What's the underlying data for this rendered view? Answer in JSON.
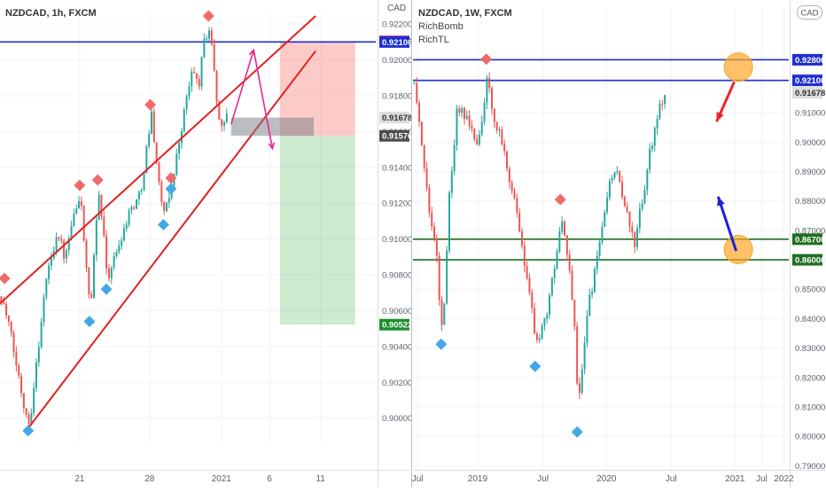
{
  "charts": [
    {
      "symbol_line": "NZDCAD, 1h, FXCM",
      "indicators": [],
      "currency_label": "CAD",
      "chart_data": {
        "type": "candlestick",
        "ylim": [
          0.8986,
          0.92265
        ],
        "y_ticks": [
          "0.90000",
          "0.90200",
          "0.90400",
          "0.90600",
          "0.90800",
          "0.91000",
          "0.91200",
          "0.91400",
          "0.91600",
          "0.91800",
          "0.92000",
          "0.92200"
        ],
        "x_ticks": [
          {
            "label": "21",
            "pos": 0.212
          },
          {
            "label": "28",
            "pos": 0.398
          },
          {
            "label": "2021",
            "pos": 0.589
          },
          {
            "label": "6",
            "pos": 0.717
          },
          {
            "label": "11",
            "pos": 0.853
          }
        ],
        "price_labels": [
          {
            "value": 0.92103,
            "text": "0.92103",
            "color": "#ef2323"
          },
          {
            "value": 0.921,
            "text": "0.92100",
            "color": "#1e2ed1"
          },
          {
            "value": 0.91678,
            "text": "0.91678",
            "color": "#dcdcdc"
          },
          {
            "value": 0.91576,
            "text": "0.91576",
            "color": "#4d4d4d"
          },
          {
            "value": 0.90522,
            "text": "0.90522",
            "color": "#1c8f2c"
          }
        ],
        "horizontal_lines": [
          {
            "value": 0.921,
            "color": "#1e2ed1"
          }
        ],
        "channel": {
          "upper": {
            "from": {
              "t": 0.0,
              "v": 0.9064
            },
            "to": {
              "t": 0.84,
              "v": 0.92245
            }
          },
          "lower": {
            "from": {
              "t": 0.07,
              "v": 0.8993
            },
            "to": {
              "t": 0.84,
              "v": 0.9205
            }
          },
          "color": "#e02020"
        },
        "position": {
          "t_from": 0.745,
          "t_to": 0.945,
          "entry": 0.91576,
          "stop": 0.92103,
          "target": 0.90522
        },
        "gray_box": {
          "t_from": 0.615,
          "t_to": 0.835,
          "v_top": 0.91678,
          "v_bottom": 0.91576
        },
        "projection": {
          "points": [
            {
              "t": 0.615,
              "v": 0.9164
            },
            {
              "t": 0.675,
              "v": 0.92055
            },
            {
              "t": 0.725,
              "v": 0.91505
            }
          ],
          "color": "#e6288f"
        },
        "markers_high": [
          {
            "t": 0.012,
            "v": 0.9078
          },
          {
            "t": 0.212,
            "v": 0.913
          },
          {
            "t": 0.26,
            "v": 0.9133
          },
          {
            "t": 0.4,
            "v": 0.9175
          },
          {
            "t": 0.455,
            "v": 0.9134
          },
          {
            "t": 0.555,
            "v": 0.92245
          }
        ],
        "markers_low": [
          {
            "t": 0.075,
            "v": 0.8993
          },
          {
            "t": 0.238,
            "v": 0.9054
          },
          {
            "t": 0.283,
            "v": 0.9072
          },
          {
            "t": 0.435,
            "v": 0.9108
          },
          {
            "t": 0.455,
            "v": 0.9128
          }
        ],
        "path": [
          {
            "t": 0.0,
            "v": 0.9068
          },
          {
            "t": 0.02,
            "v": 0.9052
          },
          {
            "t": 0.04,
            "v": 0.903
          },
          {
            "t": 0.06,
            "v": 0.9008
          },
          {
            "t": 0.075,
            "v": 0.8997
          },
          {
            "t": 0.1,
            "v": 0.9042
          },
          {
            "t": 0.12,
            "v": 0.9078
          },
          {
            "t": 0.15,
            "v": 0.9105
          },
          {
            "t": 0.17,
            "v": 0.9088
          },
          {
            "t": 0.19,
            "v": 0.911
          },
          {
            "t": 0.212,
            "v": 0.9124
          },
          {
            "t": 0.225,
            "v": 0.9085
          },
          {
            "t": 0.238,
            "v": 0.9058
          },
          {
            "t": 0.25,
            "v": 0.91
          },
          {
            "t": 0.26,
            "v": 0.9128
          },
          {
            "t": 0.283,
            "v": 0.9078
          },
          {
            "t": 0.31,
            "v": 0.9095
          },
          {
            "t": 0.34,
            "v": 0.9115
          },
          {
            "t": 0.37,
            "v": 0.9125
          },
          {
            "t": 0.4,
            "v": 0.917
          },
          {
            "t": 0.42,
            "v": 0.913
          },
          {
            "t": 0.435,
            "v": 0.9112
          },
          {
            "t": 0.455,
            "v": 0.9132
          },
          {
            "t": 0.47,
            "v": 0.915
          },
          {
            "t": 0.49,
            "v": 0.9175
          },
          {
            "t": 0.51,
            "v": 0.9195
          },
          {
            "t": 0.525,
            "v": 0.9185
          },
          {
            "t": 0.54,
            "v": 0.921
          },
          {
            "t": 0.553,
            "v": 0.9218
          },
          {
            "t": 0.565,
            "v": 0.92
          },
          {
            "t": 0.575,
            "v": 0.917
          },
          {
            "t": 0.585,
            "v": 0.9165
          },
          {
            "t": 0.6,
            "v": 0.9168
          }
        ]
      }
    },
    {
      "symbol_line": "NZDCAD, 1W, FXCM",
      "indicators": [
        "RichBomb",
        "RichTL"
      ],
      "currency_label": "CAD",
      "chart_data": {
        "type": "candlestick",
        "ylim": [
          0.7886,
          0.9453
        ],
        "y_ticks": [
          "0.79000",
          "0.80000",
          "0.81000",
          "0.82000",
          "0.83000",
          "0.84000",
          "0.85000",
          "0.86000",
          "0.87000",
          "0.88000",
          "0.89000",
          "0.90000",
          "0.91000"
        ],
        "x_ticks": [
          {
            "label": "Jul",
            "pos": 0.012
          },
          {
            "label": "2019",
            "pos": 0.172
          },
          {
            "label": "Jul",
            "pos": 0.346
          },
          {
            "label": "2020",
            "pos": 0.515
          },
          {
            "label": "Jul",
            "pos": 0.687
          },
          {
            "label": "2021",
            "pos": 0.857
          },
          {
            "label": "Jul",
            "pos": 0.928
          },
          {
            "label": "2022",
            "pos": 0.987
          }
        ],
        "price_labels": [
          {
            "value": 0.928,
            "text": "0.92800",
            "color": "#1e2ed1"
          },
          {
            "value": 0.921,
            "text": "0.92100",
            "color": "#1e2ed1"
          },
          {
            "value": 0.91678,
            "text": "0.91678",
            "color": "#dcdcdc"
          },
          {
            "value": 0.867,
            "text": "0.86700",
            "color": "#1f6e1f"
          },
          {
            "value": 0.86,
            "text": "0.86000",
            "color": "#1f6e1f"
          }
        ],
        "horizontal_lines": [
          {
            "value": 0.928,
            "color": "#1e2ed1"
          },
          {
            "value": 0.921,
            "color": "#1e2ed1"
          },
          {
            "value": 0.867,
            "color": "#1f6e1f"
          },
          {
            "value": 0.86,
            "color": "#1f6e1f"
          }
        ],
        "circles": [
          {
            "t": 0.866,
            "v": 0.9255
          },
          {
            "t": 0.866,
            "v": 0.8635
          }
        ],
        "arrows": [
          {
            "from": {
              "t": 0.855,
              "v": 0.9205
            },
            "to": {
              "t": 0.808,
              "v": 0.907
            },
            "color": "#ef2323"
          },
          {
            "from": {
              "t": 0.86,
              "v": 0.863
            },
            "to": {
              "t": 0.812,
              "v": 0.8815
            },
            "color": "#1c22d6"
          }
        ],
        "markers_high": [
          {
            "t": 0.195,
            "v": 0.9282
          },
          {
            "t": 0.392,
            "v": 0.8805
          }
        ],
        "markers_low": [
          {
            "t": 0.075,
            "v": 0.8313
          },
          {
            "t": 0.325,
            "v": 0.8238
          },
          {
            "t": 0.437,
            "v": 0.8015
          }
        ],
        "path": [
          {
            "t": 0.0,
            "v": 0.92
          },
          {
            "t": 0.02,
            "v": 0.899
          },
          {
            "t": 0.04,
            "v": 0.878
          },
          {
            "t": 0.06,
            "v": 0.86
          },
          {
            "t": 0.075,
            "v": 0.834
          },
          {
            "t": 0.095,
            "v": 0.885
          },
          {
            "t": 0.115,
            "v": 0.912
          },
          {
            "t": 0.14,
            "v": 0.908
          },
          {
            "t": 0.165,
            "v": 0.899
          },
          {
            "t": 0.185,
            "v": 0.91
          },
          {
            "t": 0.195,
            "v": 0.923
          },
          {
            "t": 0.21,
            "v": 0.91
          },
          {
            "t": 0.24,
            "v": 0.896
          },
          {
            "t": 0.265,
            "v": 0.88
          },
          {
            "t": 0.28,
            "v": 0.87
          },
          {
            "t": 0.3,
            "v": 0.852
          },
          {
            "t": 0.325,
            "v": 0.833
          },
          {
            "t": 0.35,
            "v": 0.84
          },
          {
            "t": 0.37,
            "v": 0.855
          },
          {
            "t": 0.392,
            "v": 0.874
          },
          {
            "t": 0.41,
            "v": 0.86
          },
          {
            "t": 0.425,
            "v": 0.84
          },
          {
            "t": 0.437,
            "v": 0.81
          },
          {
            "t": 0.46,
            "v": 0.842
          },
          {
            "t": 0.48,
            "v": 0.856
          },
          {
            "t": 0.5,
            "v": 0.87
          },
          {
            "t": 0.52,
            "v": 0.886
          },
          {
            "t": 0.54,
            "v": 0.89
          },
          {
            "t": 0.56,
            "v": 0.878
          },
          {
            "t": 0.585,
            "v": 0.865
          },
          {
            "t": 0.605,
            "v": 0.879
          },
          {
            "t": 0.625,
            "v": 0.895
          },
          {
            "t": 0.645,
            "v": 0.908
          },
          {
            "t": 0.66,
            "v": 0.915
          },
          {
            "t": 0.67,
            "v": 0.9168
          }
        ]
      }
    }
  ]
}
